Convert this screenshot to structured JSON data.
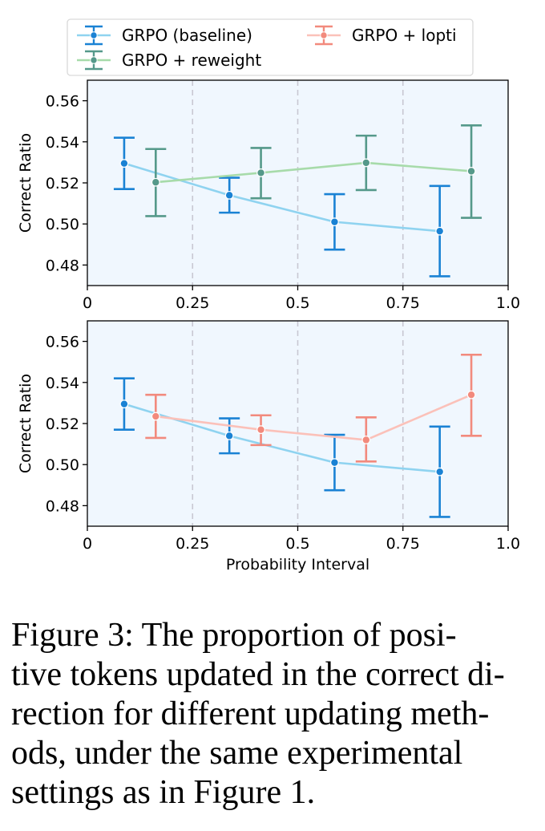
{
  "chart_data": [
    {
      "type": "line",
      "panel": "top",
      "xlabel": "",
      "ylabel": "Correct Ratio",
      "xlim": [
        0,
        1.0
      ],
      "ylim": [
        0.47,
        0.57
      ],
      "xticks": [
        0,
        0.25,
        0.5,
        0.75,
        1.0
      ],
      "xtick_labels": [
        "0",
        "0.25",
        "0.5",
        "0.75",
        "1.0"
      ],
      "yticks": [
        0.48,
        0.5,
        0.52,
        0.54,
        0.56
      ],
      "ytick_labels": [
        "0.48",
        "0.50",
        "0.52",
        "0.54",
        "0.56"
      ],
      "vlines": [
        0.25,
        0.5,
        0.75
      ],
      "series": [
        {
          "name": "GRPO (baseline)",
          "line_color": "#8fd3f0",
          "marker_color": "#1a82d4",
          "x": [
            0.0875,
            0.3375,
            0.5875,
            0.8375
          ],
          "y": [
            0.5295,
            0.514,
            0.501,
            0.4965
          ],
          "err_low": [
            0.517,
            0.5055,
            0.4875,
            0.4745
          ],
          "err_high": [
            0.542,
            0.5225,
            0.5145,
            0.5185
          ]
        },
        {
          "name": "GRPO + reweight",
          "line_color": "#a7dbaa",
          "marker_color": "#55998a",
          "x": [
            0.1625,
            0.4125,
            0.6625,
            0.9125
          ],
          "y": [
            0.5203,
            0.5249,
            0.5298,
            0.5257
          ],
          "err_low": [
            0.5038,
            0.5125,
            0.5165,
            0.503
          ],
          "err_high": [
            0.5365,
            0.537,
            0.543,
            0.548
          ]
        }
      ]
    },
    {
      "type": "line",
      "panel": "bottom",
      "xlabel": "Probability Interval",
      "ylabel": "Correct Ratio",
      "xlim": [
        0,
        1.0
      ],
      "ylim": [
        0.47,
        0.57
      ],
      "xticks": [
        0,
        0.25,
        0.5,
        0.75,
        1.0
      ],
      "xtick_labels": [
        "0",
        "0.25",
        "0.5",
        "0.75",
        "1.0"
      ],
      "yticks": [
        0.48,
        0.5,
        0.52,
        0.54,
        0.56
      ],
      "ytick_labels": [
        "0.48",
        "0.50",
        "0.52",
        "0.54",
        "0.56"
      ],
      "vlines": [
        0.25,
        0.5,
        0.75
      ],
      "series": [
        {
          "name": "GRPO (baseline)",
          "line_color": "#8fd3f0",
          "marker_color": "#1a82d4",
          "x": [
            0.0875,
            0.3375,
            0.5875,
            0.8375
          ],
          "y": [
            0.5295,
            0.514,
            0.501,
            0.4965
          ],
          "err_low": [
            0.517,
            0.5055,
            0.4875,
            0.4745
          ],
          "err_high": [
            0.542,
            0.5225,
            0.5145,
            0.5185
          ]
        },
        {
          "name": "GRPO + lopti",
          "line_color": "#fbc1b9",
          "marker_color": "#f28a7d",
          "x": [
            0.1625,
            0.4125,
            0.6625,
            0.9125
          ],
          "y": [
            0.5235,
            0.517,
            0.512,
            0.534
          ],
          "err_low": [
            0.513,
            0.5095,
            0.5015,
            0.514
          ],
          "err_high": [
            0.534,
            0.524,
            0.523,
            0.5535
          ]
        }
      ]
    }
  ],
  "legend": {
    "entries": [
      {
        "label": "GRPO (baseline)",
        "line_color": "#8fd3f0",
        "marker_color": "#1a82d4"
      },
      {
        "label": "GRPO + lopti",
        "line_color": "#fbc1b9",
        "marker_color": "#f28a7d"
      },
      {
        "label": "GRPO + reweight",
        "line_color": "#a7dbaa",
        "marker_color": "#55998a"
      }
    ]
  },
  "colors": {
    "plot_background": "#f0f7fe",
    "grid_line": "#c8c8d2"
  },
  "caption": {
    "text": "Figure 3: The proportion of positive tokens updated in the correct direction for different updating methods, under the same experimental settings as in Figure 1.",
    "lines": [
      "Figure 3: The proportion of posi-",
      "tive tokens updated in the correct di-",
      "rection for different updating meth-",
      "ods, under the same experimental",
      "settings as in Figure 1."
    ]
  }
}
